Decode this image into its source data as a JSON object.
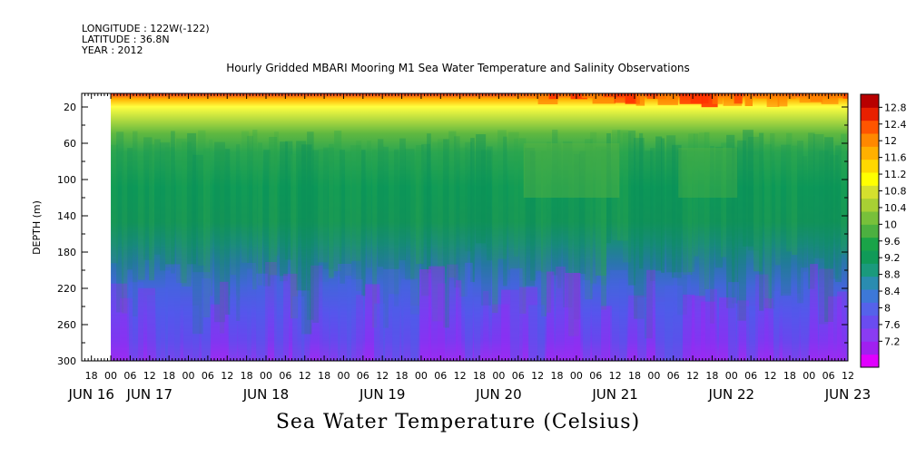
{
  "header": {
    "longitude": "LONGITUDE : 122W(-122)",
    "latitude": "LATITUDE : 36.8N",
    "year": "YEAR : 2012"
  },
  "chart_data": {
    "type": "heatmap",
    "title": "Hourly Gridded MBARI Mooring M1 Sea Water Temperature and Salinity Observations",
    "xlabel": "",
    "ylabel": "DEPTH (m)",
    "caption": "Sea Water Temperature (Celsius)",
    "x_hour_range": [
      -9,
      228
    ],
    "data_start_hour": 0,
    "data_end_hour": 228,
    "hour_ticks": [
      {
        "h": -6,
        "label": "18"
      },
      {
        "h": 0,
        "label": "00"
      },
      {
        "h": 6,
        "label": "06"
      },
      {
        "h": 12,
        "label": "12"
      },
      {
        "h": 18,
        "label": "18"
      },
      {
        "h": 24,
        "label": "00"
      },
      {
        "h": 30,
        "label": "06"
      },
      {
        "h": 36,
        "label": "12"
      },
      {
        "h": 42,
        "label": "18"
      },
      {
        "h": 48,
        "label": "00"
      },
      {
        "h": 54,
        "label": "06"
      },
      {
        "h": 60,
        "label": "12"
      },
      {
        "h": 66,
        "label": "18"
      },
      {
        "h": 72,
        "label": "00"
      },
      {
        "h": 78,
        "label": "06"
      },
      {
        "h": 84,
        "label": "12"
      },
      {
        "h": 90,
        "label": "18"
      },
      {
        "h": 96,
        "label": "00"
      },
      {
        "h": 102,
        "label": "06"
      },
      {
        "h": 108,
        "label": "12"
      },
      {
        "h": 114,
        "label": "18"
      },
      {
        "h": 120,
        "label": "00"
      },
      {
        "h": 126,
        "label": "06"
      },
      {
        "h": 132,
        "label": "12"
      },
      {
        "h": 138,
        "label": "18"
      },
      {
        "h": 144,
        "label": "00"
      },
      {
        "h": 150,
        "label": "06"
      },
      {
        "h": 156,
        "label": "12"
      },
      {
        "h": 162,
        "label": "18"
      },
      {
        "h": 168,
        "label": "00"
      },
      {
        "h": 174,
        "label": "06"
      },
      {
        "h": 180,
        "label": "12"
      },
      {
        "h": 186,
        "label": "18"
      },
      {
        "h": 192,
        "label": "00"
      },
      {
        "h": 198,
        "label": "06"
      },
      {
        "h": 204,
        "label": "12"
      },
      {
        "h": 210,
        "label": "18"
      },
      {
        "h": 216,
        "label": "00"
      },
      {
        "h": 222,
        "label": "06"
      },
      {
        "h": 228,
        "label": "12"
      }
    ],
    "day_labels": [
      {
        "h": -6,
        "label": "JUN 16"
      },
      {
        "h": 12,
        "label": "JUN 17"
      },
      {
        "h": 48,
        "label": "JUN 18"
      },
      {
        "h": 84,
        "label": "JUN 19"
      },
      {
        "h": 120,
        "label": "JUN 20"
      },
      {
        "h": 156,
        "label": "JUN 21"
      },
      {
        "h": 192,
        "label": "JUN 22"
      },
      {
        "h": 228,
        "label": "JUN 23"
      }
    ],
    "y_range": [
      300,
      5
    ],
    "y_ticks": [
      20,
      60,
      100,
      140,
      180,
      220,
      260,
      300
    ],
    "colorbar": {
      "levels": [
        "7.2",
        "7.6",
        "8",
        "8.4",
        "8.8",
        "9.2",
        "9.6",
        "10",
        "10.4",
        "10.8",
        "11.2",
        "11.6",
        "12",
        "12.4",
        "12.8"
      ],
      "colors": [
        "#e000ff",
        "#a020f0",
        "#8a3cf2",
        "#6a4cf0",
        "#5562ea",
        "#3d78d8",
        "#2a8cb0",
        "#1a9a7c",
        "#109a58",
        "#1aa448",
        "#4cb040",
        "#78c03a",
        "#a8d034",
        "#d4e02e",
        "#ffff00",
        "#ffd800",
        "#ffb000",
        "#ff8800",
        "#ff5500",
        "#e82000",
        "#b80000"
      ]
    }
  }
}
